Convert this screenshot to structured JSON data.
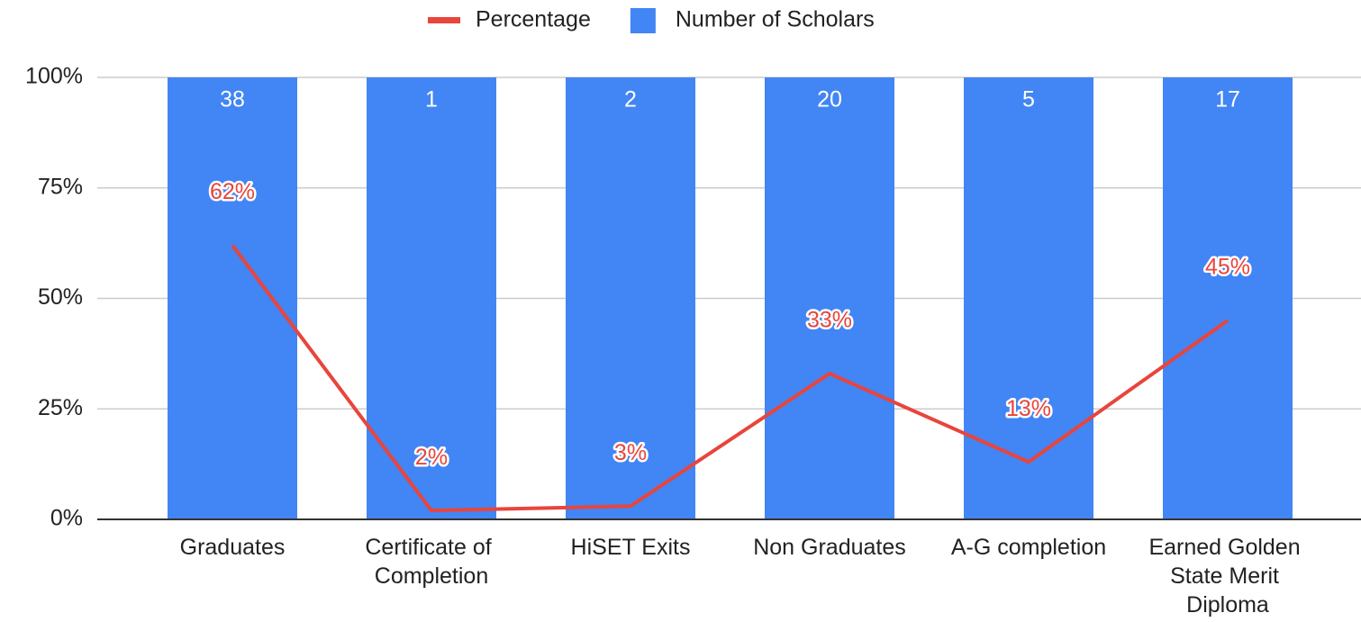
{
  "chart_data": {
    "type": "bar",
    "categories": [
      "Graduates",
      "Certificate of Completion",
      "HiSET Exits",
      "Non Graduates",
      "A-G completion",
      "Earned Golden State Merit Diploma"
    ],
    "stacking": "percent",
    "series": [
      {
        "name": "Number of Scholars",
        "type": "bar",
        "color": "#4285f4",
        "values": [
          38,
          1,
          2,
          20,
          5,
          17
        ]
      },
      {
        "name": "Percentage",
        "type": "line",
        "color": "#e8453c",
        "values": [
          62,
          2,
          3,
          33,
          13,
          45
        ],
        "value_labels": [
          "62%",
          "2%",
          "3%",
          "33%",
          "13%",
          "45%"
        ]
      }
    ],
    "ylim": [
      0,
      100
    ],
    "yticks": [
      {
        "value": 0,
        "label": "0%"
      },
      {
        "value": 25,
        "label": "25%"
      },
      {
        "value": 50,
        "label": "50%"
      },
      {
        "value": 75,
        "label": "75%"
      },
      {
        "value": 100,
        "label": "100%"
      }
    ],
    "grid": true,
    "legend": "top"
  }
}
